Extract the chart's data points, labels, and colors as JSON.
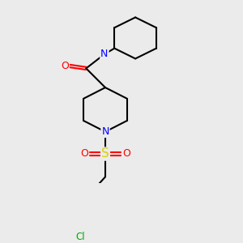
{
  "bg_color": "#ebebeb",
  "atom_colors": {
    "C": "#000000",
    "N": "#0000ff",
    "O": "#ff0000",
    "S": "#d4d400",
    "Cl": "#00aa00"
  },
  "bond_color": "#000000",
  "bond_width": 1.5,
  "font_size_atom": 9,
  "fig_size": [
    3.0,
    3.0
  ],
  "dpi": 100
}
